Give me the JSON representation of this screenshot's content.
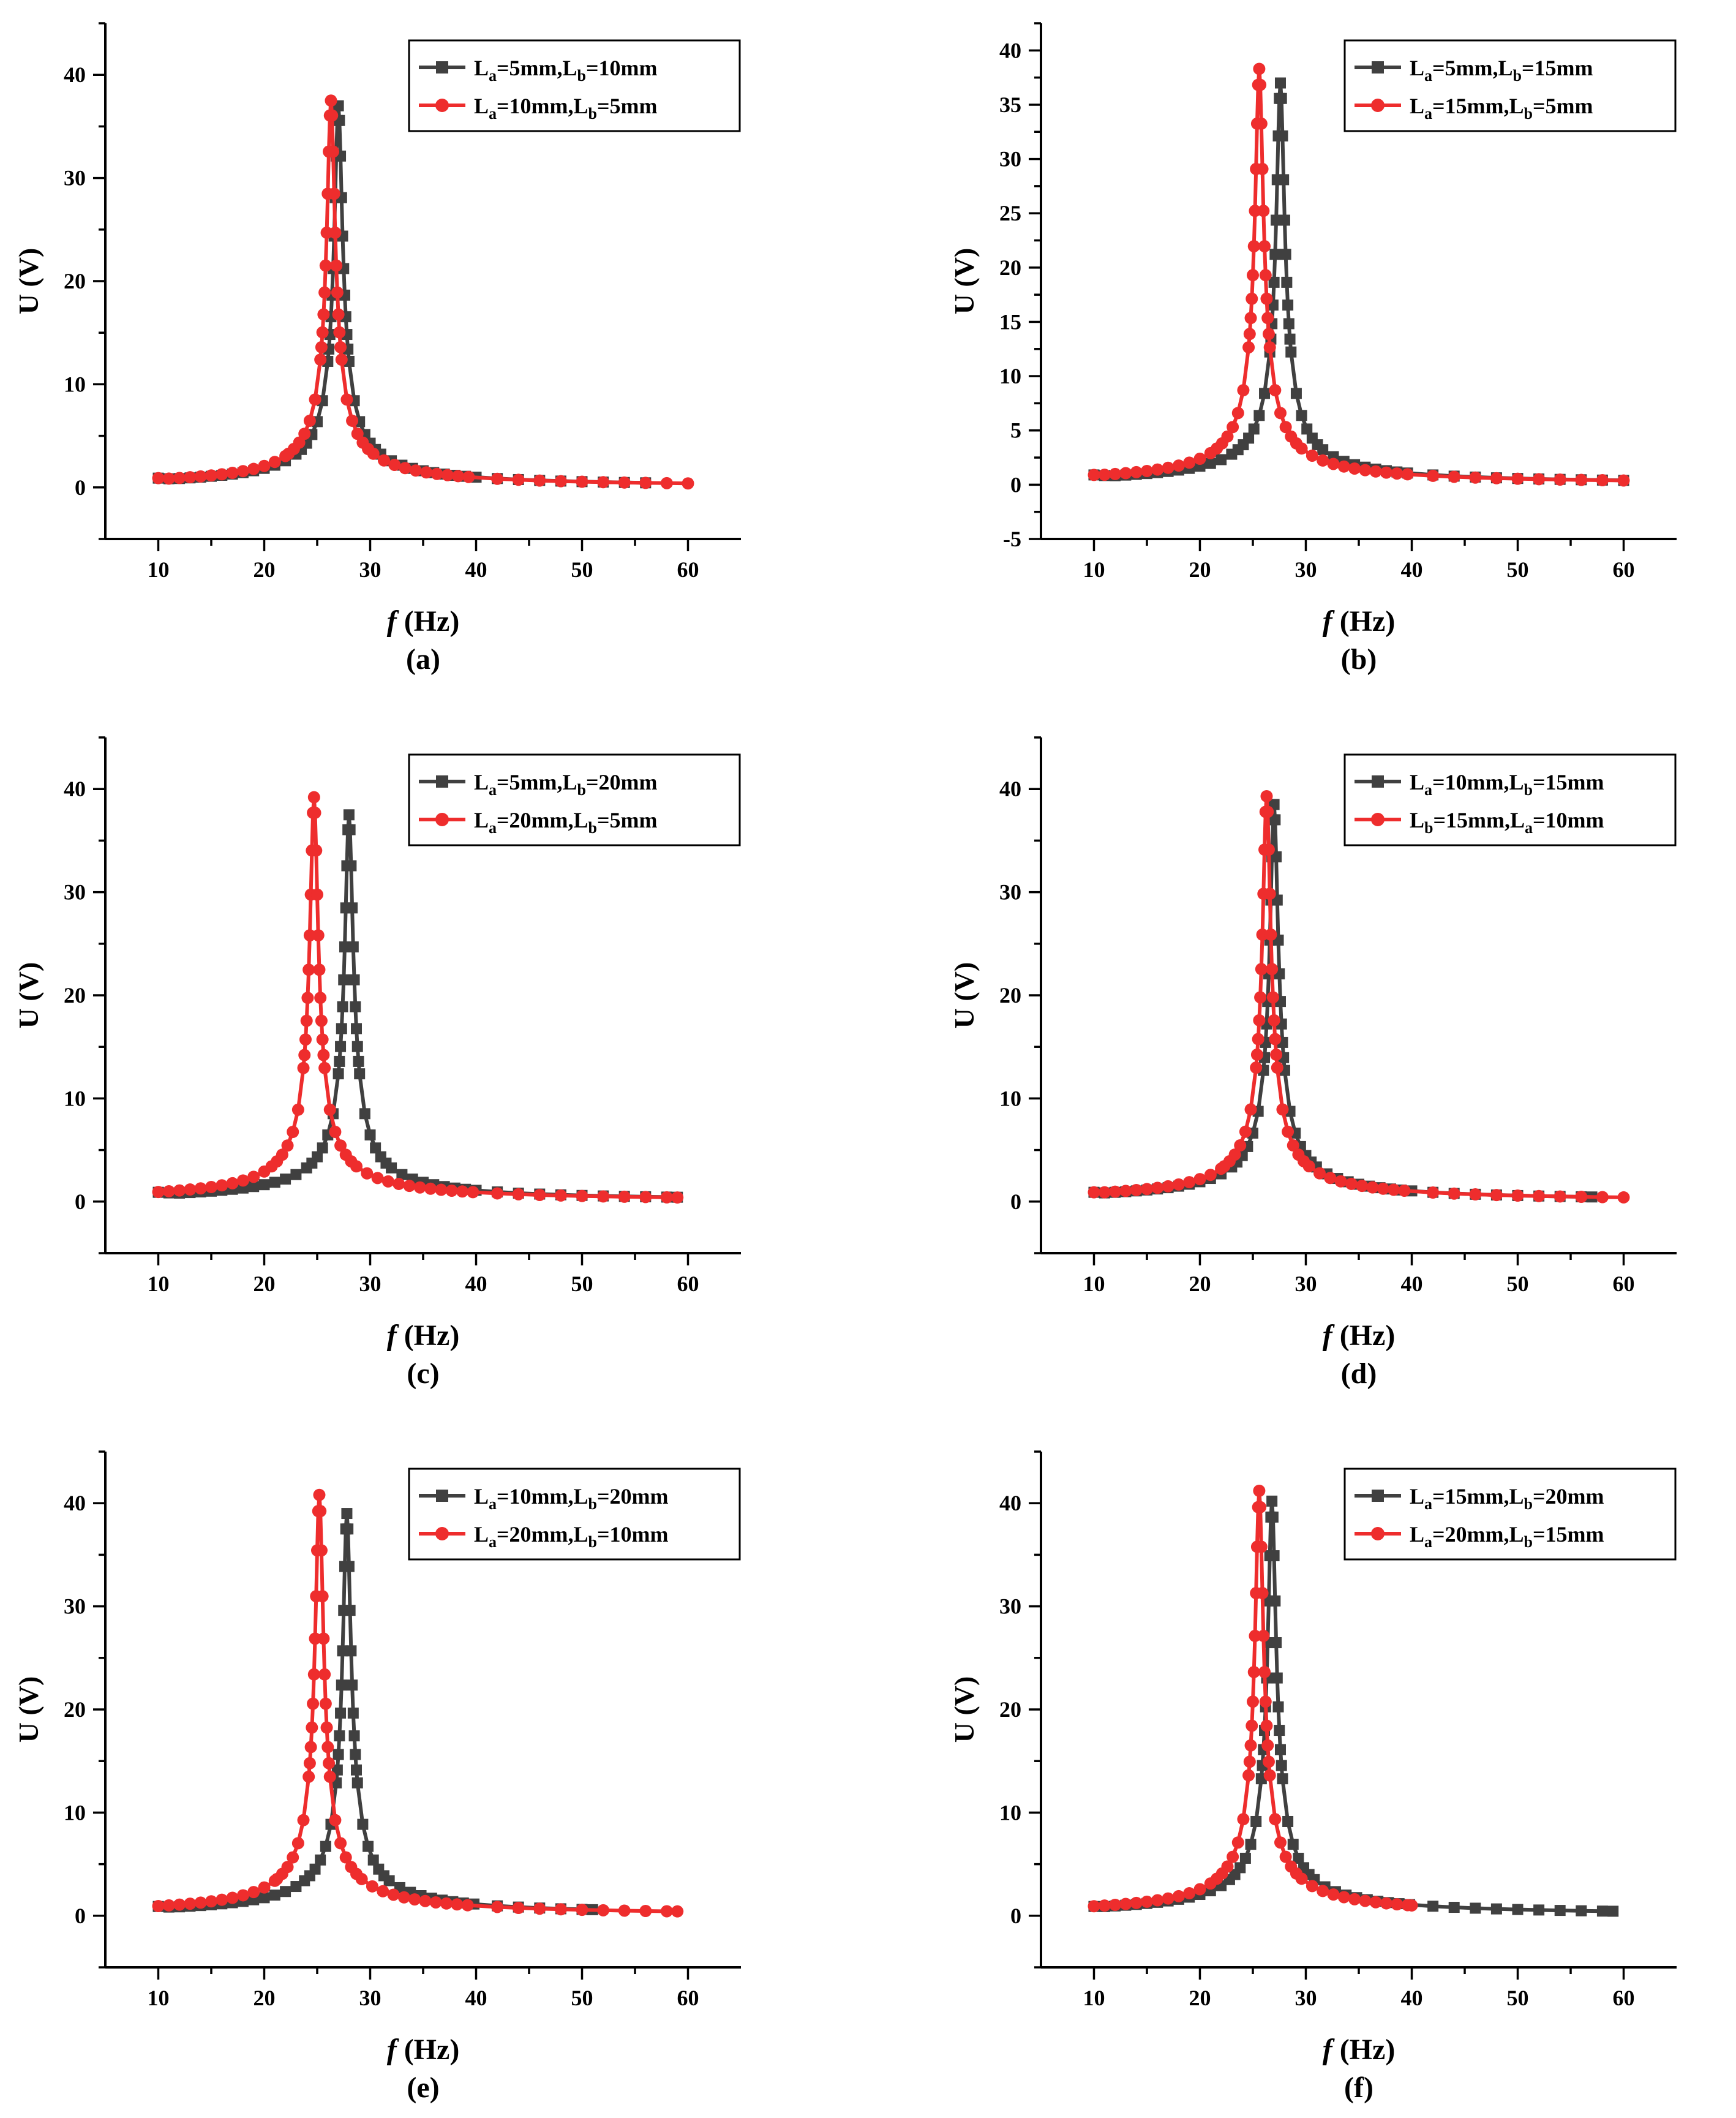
{
  "figure": {
    "x_axis_label": {
      "italic": "f",
      "rest": " (Hz)"
    },
    "y_axis_label": "U (V)"
  },
  "colors": {
    "series_black": "#404040",
    "series_red": "#ee2d2d",
    "axis": "#000000"
  },
  "chart_data": [
    {
      "id": "a",
      "type": "line",
      "caption": "(a)",
      "xlabel": "f (Hz)",
      "ylabel": "U (V)",
      "xlim": [
        5,
        65
      ],
      "ylim": [
        -5,
        45
      ],
      "xticks": [
        10,
        20,
        30,
        40,
        50,
        60
      ],
      "yticks": [
        0,
        10,
        20,
        30,
        40
      ],
      "legend_position": "top-right",
      "series": [
        {
          "name": "La=5mm,Lb=10mm",
          "legend": {
            "s1": "a",
            "v1": "=5mm,",
            "s2": "b",
            "v2": "=10mm"
          },
          "color": "#404040",
          "marker": "square",
          "f0": 27.0,
          "peak": 37.0,
          "xmax": 56,
          "hw": 0.35
        },
        {
          "name": "La=10mm,Lb=5mm",
          "legend": {
            "s1": "a",
            "v1": "=10mm,",
            "s2": "b",
            "v2": "=5mm"
          },
          "color": "#ee2d2d",
          "marker": "circle",
          "f0": 26.3,
          "peak": 37.5,
          "xmax": 60,
          "hw": 0.35
        }
      ]
    },
    {
      "id": "b",
      "type": "line",
      "caption": "(b)",
      "xlabel": "f (Hz)",
      "ylabel": "U (V)",
      "xlim": [
        5,
        65
      ],
      "ylim": [
        -5,
        42.5
      ],
      "xticks": [
        10,
        20,
        30,
        40,
        50,
        60
      ],
      "yticks": [
        -5,
        0,
        5,
        10,
        15,
        20,
        25,
        30,
        35,
        40
      ],
      "legend_position": "top-right",
      "series": [
        {
          "name": "La=5mm,Lb=15mm",
          "legend": {
            "s1": "a",
            "v1": "=5mm,",
            "s2": "b",
            "v2": "=15mm"
          },
          "color": "#404040",
          "marker": "square",
          "f0": 27.6,
          "peak": 37.0,
          "xmax": 60,
          "hw": 0.35
        },
        {
          "name": "La=15mm,Lb=5mm",
          "legend": {
            "s1": "a",
            "v1": "=15mm,",
            "s2": "b",
            "v2": "=5mm"
          },
          "color": "#ee2d2d",
          "marker": "circle",
          "f0": 25.6,
          "peak": 38.3,
          "xmax": 60,
          "hw": 0.35
        }
      ]
    },
    {
      "id": "c",
      "type": "line",
      "caption": "(c)",
      "xlabel": "f (Hz)",
      "ylabel": "U (V)",
      "xlim": [
        5,
        65
      ],
      "ylim": [
        -5,
        45
      ],
      "xticks": [
        10,
        20,
        30,
        40,
        50,
        60
      ],
      "yticks": [
        0,
        10,
        20,
        30,
        40
      ],
      "legend_position": "top-right",
      "series": [
        {
          "name": "La=5mm,Lb=20mm",
          "legend": {
            "s1": "a",
            "v1": "=5mm,",
            "s2": "b",
            "v2": "=20mm"
          },
          "color": "#404040",
          "marker": "square",
          "f0": 28.0,
          "peak": 37.5,
          "xmax": 59,
          "hw": 0.35
        },
        {
          "name": "La=20mm,Lb=5mm",
          "legend": {
            "s1": "a",
            "v1": "=20mm,",
            "s2": "b",
            "v2": "=5mm"
          },
          "color": "#ee2d2d",
          "marker": "circle",
          "f0": 24.7,
          "peak": 39.2,
          "xmax": 59,
          "hw": 0.35
        }
      ]
    },
    {
      "id": "d",
      "type": "line",
      "caption": "(d)",
      "xlabel": "f (Hz)",
      "ylabel": "U (V)",
      "xlim": [
        5,
        65
      ],
      "ylim": [
        -5,
        45
      ],
      "xticks": [
        10,
        20,
        30,
        40,
        50,
        60
      ],
      "yticks": [
        0,
        10,
        20,
        30,
        40
      ],
      "legend_position": "top-right",
      "series": [
        {
          "name": "La=10mm,Lb=15mm",
          "legend": {
            "s1": "a",
            "v1": "=10mm,",
            "s2": "b",
            "v2": "=15mm"
          },
          "color": "#404040",
          "marker": "square",
          "f0": 27.0,
          "peak": 38.5,
          "xmax": 57,
          "hw": 0.35
        },
        {
          "name": "Lb=15mm,La=10mm",
          "legend": {
            "s1": "b",
            "v1": "=15mm,",
            "s2": "a",
            "v2": "=10mm"
          },
          "color": "#ee2d2d",
          "marker": "circle",
          "f0": 26.3,
          "peak": 39.3,
          "xmax": 60,
          "hw": 0.35
        }
      ]
    },
    {
      "id": "e",
      "type": "line",
      "caption": "(e)",
      "xlabel": "f (Hz)",
      "ylabel": "U (V)",
      "xlim": [
        5,
        65
      ],
      "ylim": [
        -5,
        45
      ],
      "xticks": [
        10,
        20,
        30,
        40,
        50,
        60
      ],
      "yticks": [
        0,
        10,
        20,
        30,
        40
      ],
      "legend_position": "top-right",
      "series": [
        {
          "name": "La=10mm,Lb=20mm",
          "legend": {
            "s1": "a",
            "v1": "=10mm,",
            "s2": "b",
            "v2": "=20mm"
          },
          "color": "#404040",
          "marker": "square",
          "f0": 27.8,
          "peak": 39.0,
          "xmax": 51,
          "hw": 0.35
        },
        {
          "name": "La=20mm,Lb=10mm",
          "legend": {
            "s1": "a",
            "v1": "=20mm,",
            "s2": "b",
            "v2": "=10mm"
          },
          "color": "#ee2d2d",
          "marker": "circle",
          "f0": 25.2,
          "peak": 40.8,
          "xmax": 59,
          "hw": 0.35
        }
      ]
    },
    {
      "id": "f",
      "type": "line",
      "caption": "(f)",
      "xlabel": "f (Hz)",
      "ylabel": "U (V)",
      "xlim": [
        5,
        65
      ],
      "ylim": [
        -5,
        45
      ],
      "xticks": [
        10,
        20,
        30,
        40,
        50,
        60
      ],
      "yticks": [
        0,
        10,
        20,
        30,
        40
      ],
      "legend_position": "top-right",
      "series": [
        {
          "name": "La=15mm,Lb=20mm",
          "legend": {
            "s1": "a",
            "v1": "=15mm,",
            "s2": "b",
            "v2": "=20mm"
          },
          "color": "#404040",
          "marker": "square",
          "f0": 26.8,
          "peak": 40.2,
          "xmax": 59,
          "hw": 0.35
        },
        {
          "name": "La=20mm,Lb=15mm",
          "legend": {
            "s1": "a",
            "v1": "=20mm,",
            "s2": "b",
            "v2": "=15mm"
          },
          "color": "#ee2d2d",
          "marker": "circle",
          "f0": 25.6,
          "peak": 41.2,
          "xmax": 40,
          "hw": 0.35
        }
      ]
    }
  ]
}
